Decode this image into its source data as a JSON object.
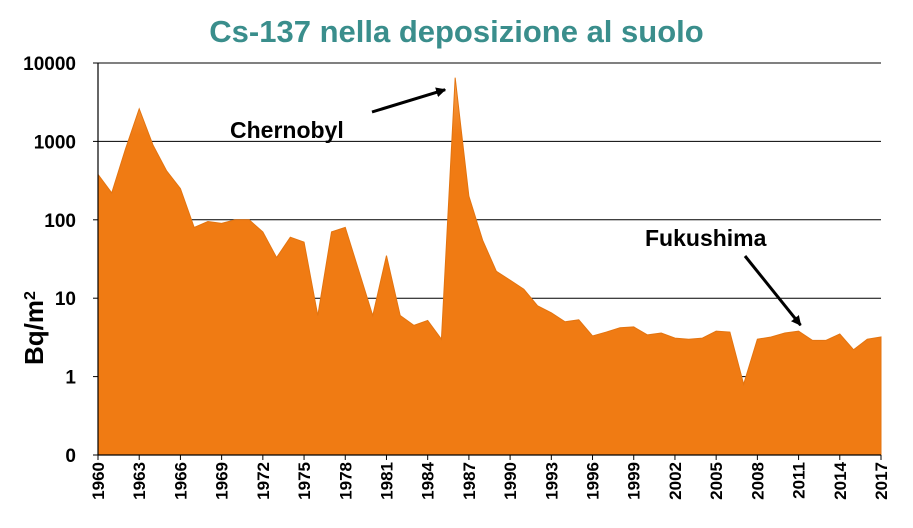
{
  "chart_data": {
    "type": "area",
    "title": "Cs-137 nella deposizione al suolo",
    "ylabel_main": "Bq/m",
    "ylabel_sup": "2",
    "yscale": "log",
    "ylim": [
      0,
      10000
    ],
    "yticks": [
      "0",
      "1",
      "10",
      "100",
      "1000",
      "10000"
    ],
    "xticks": [
      "1960",
      "1963",
      "1966",
      "1969",
      "1972",
      "1975",
      "1978",
      "1981",
      "1984",
      "1987",
      "1990",
      "1993",
      "1996",
      "1999",
      "2002",
      "2005",
      "2008",
      "2011",
      "2014",
      "2017"
    ],
    "grid": true,
    "color": "#f07b13",
    "x": [
      1960,
      1961,
      1962,
      1963,
      1964,
      1965,
      1966,
      1967,
      1968,
      1969,
      1970,
      1971,
      1972,
      1973,
      1974,
      1975,
      1976,
      1977,
      1978,
      1979,
      1980,
      1981,
      1982,
      1983,
      1984,
      1985,
      1986,
      1987,
      1988,
      1989,
      1990,
      1991,
      1992,
      1993,
      1994,
      1995,
      1996,
      1997,
      1998,
      1999,
      2000,
      2001,
      2002,
      2003,
      2004,
      2005,
      2006,
      2007,
      2008,
      2009,
      2010,
      2011,
      2012,
      2013,
      2014,
      2015,
      2016,
      2017
    ],
    "values": [
      380,
      220,
      800,
      2600,
      900,
      420,
      250,
      80,
      95,
      90,
      100,
      100,
      70,
      33,
      60,
      52,
      6,
      70,
      80,
      22,
      6,
      35,
      6,
      4.5,
      5.2,
      3,
      6500,
      200,
      55,
      22,
      17,
      13,
      8,
      6.5,
      5,
      5.3,
      3.3,
      3.7,
      4.2,
      4.3,
      3.4,
      3.6,
      3.1,
      3,
      3.1,
      3.8,
      3.7,
      0.8,
      3,
      3.2,
      3.6,
      3.8,
      2.9,
      2.9,
      3.5,
      2.2,
      3,
      3.2
    ],
    "annotations": [
      {
        "label": "Chernobyl",
        "x": 1986
      },
      {
        "label": "Fukushima",
        "x": 2011
      }
    ]
  }
}
